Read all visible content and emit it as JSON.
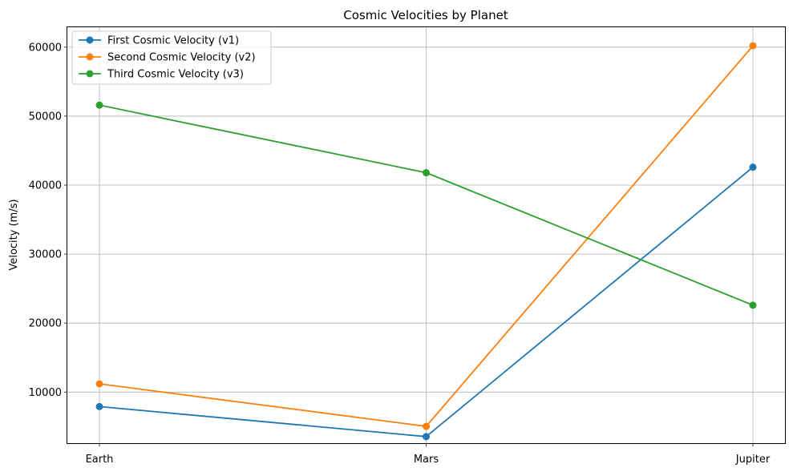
{
  "chart_data": {
    "type": "line",
    "title": "Cosmic Velocities by Planet",
    "xlabel": "",
    "ylabel": "Velocity (m/s)",
    "categories": [
      "Earth",
      "Mars",
      "Jupiter"
    ],
    "ylim": [
      2600,
      63000
    ],
    "yticks": [
      10000,
      20000,
      30000,
      40000,
      50000,
      60000
    ],
    "ytick_labels": [
      "10000",
      "20000",
      "30000",
      "40000",
      "50000",
      "60000"
    ],
    "grid": true,
    "legend_position": "top-left",
    "markers": "circle",
    "series": [
      {
        "name": "First Cosmic Velocity (v1)",
        "color": "#1f77b4",
        "values": [
          7900,
          3550,
          42600
        ]
      },
      {
        "name": "Second Cosmic Velocity (v2)",
        "color": "#ff7f0e",
        "values": [
          11200,
          5030,
          60200
        ]
      },
      {
        "name": "Third Cosmic Velocity (v3)",
        "color": "#2ca02c",
        "values": [
          51600,
          41800,
          22600
        ]
      }
    ]
  }
}
